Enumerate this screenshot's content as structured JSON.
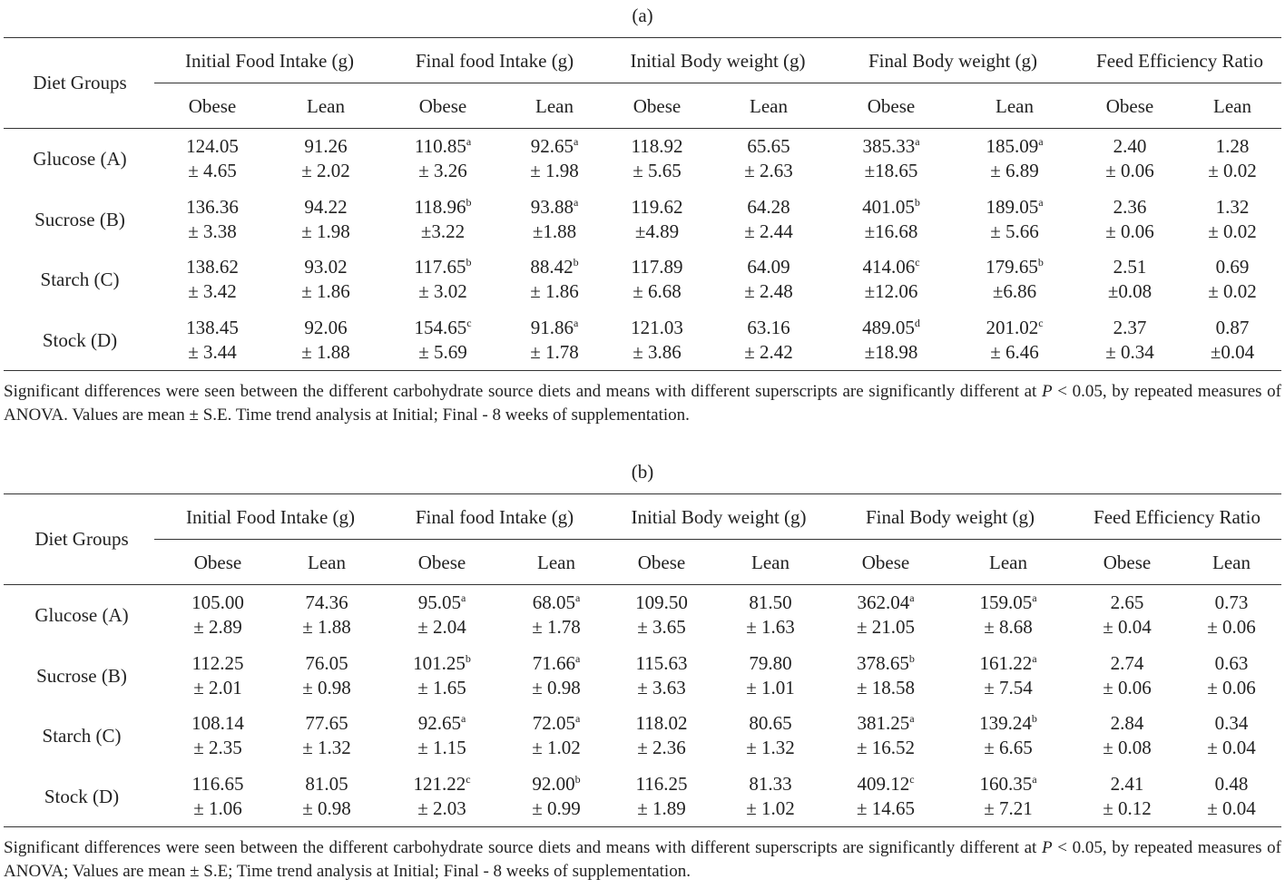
{
  "tables": [
    {
      "caption": "(a)",
      "row_header": "Diet Groups",
      "groups": [
        "Initial Food Intake (g)",
        "Final food Intake (g)",
        "Initial Body weight (g)",
        "Final Body weight (g)",
        "Feed Efficiency Ratio"
      ],
      "subheaders": [
        "Obese",
        "Lean",
        "Obese",
        "Lean",
        "Obese",
        "Lean",
        "Obese",
        "Lean",
        "Obese",
        "Lean"
      ],
      "rows": [
        {
          "label": "Glucose (A)",
          "cells": [
            [
              "124.05",
              "± 4.65"
            ],
            [
              "91.26",
              "± 2.02"
            ],
            [
              "110.85",
              "a",
              "± 3.26"
            ],
            [
              "92.65",
              "a",
              "± 1.98"
            ],
            [
              "118.92",
              "± 5.65"
            ],
            [
              "65.65",
              "± 2.63"
            ],
            [
              "385.33",
              "a",
              "±18.65"
            ],
            [
              "185.09",
              "a",
              "± 6.89"
            ],
            [
              "2.40",
              "± 0.06"
            ],
            [
              "1.28",
              "± 0.02"
            ]
          ]
        },
        {
          "label": "Sucrose (B)",
          "cells": [
            [
              "136.36",
              "± 3.38"
            ],
            [
              "94.22",
              "± 1.98"
            ],
            [
              "118.96",
              "b",
              "±3.22"
            ],
            [
              "93.88",
              "a",
              "±1.88"
            ],
            [
              "119.62",
              "±4.89"
            ],
            [
              "64.28",
              "± 2.44"
            ],
            [
              "401.05",
              "b",
              "±16.68"
            ],
            [
              "189.05",
              "a",
              "± 5.66"
            ],
            [
              "2.36",
              "± 0.06"
            ],
            [
              "1.32",
              "± 0.02"
            ]
          ]
        },
        {
          "label": "Starch (C)",
          "cells": [
            [
              "138.62",
              "± 3.42"
            ],
            [
              "93.02",
              "± 1.86"
            ],
            [
              "117.65",
              "b",
              "± 3.02"
            ],
            [
              "88.42",
              "b",
              "± 1.86"
            ],
            [
              "117.89",
              "± 6.68"
            ],
            [
              "64.09",
              "± 2.48"
            ],
            [
              "414.06",
              "c",
              "±12.06"
            ],
            [
              "179.65",
              "b",
              "±6.86"
            ],
            [
              "2.51",
              "±0.08"
            ],
            [
              "0.69",
              "± 0.02"
            ]
          ]
        },
        {
          "label": "Stock (D)",
          "cells": [
            [
              "138.45",
              "± 3.44"
            ],
            [
              "92.06",
              "± 1.88"
            ],
            [
              "154.65",
              "c",
              "± 5.69"
            ],
            [
              "91.86",
              "a",
              "± 1.78"
            ],
            [
              "121.03",
              "± 3.86"
            ],
            [
              "63.16",
              "± 2.42"
            ],
            [
              "489.05",
              "d",
              "±18.98"
            ],
            [
              "201.02",
              "c",
              "± 6.46"
            ],
            [
              "2.37",
              "± 0.34"
            ],
            [
              "0.87",
              "±0.04"
            ]
          ]
        }
      ],
      "note": [
        "Significant differences were seen between the different carbohydrate source diets and means with different superscripts are significantly different at ",
        "P",
        " < 0.05, by repeated measures of ANOVA. Values are mean ± S.E. Time trend analysis at Initial; Final - 8 weeks of supplementation."
      ]
    },
    {
      "caption": "(b)",
      "row_header": "Diet Groups",
      "groups": [
        "Initial Food Intake (g)",
        "Final food Intake (g)",
        "Initial Body weight (g)",
        "Final Body weight (g)",
        "Feed Efficiency Ratio"
      ],
      "subheaders": [
        "Obese",
        "Lean",
        "Obese",
        "Lean",
        "Obese",
        "Lean",
        "Obese",
        "Lean",
        "Obese",
        "Lean"
      ],
      "rows": [
        {
          "label": "Glucose (A)",
          "cells": [
            [
              "105.00",
              "± 2.89"
            ],
            [
              "74.36",
              "± 1.88"
            ],
            [
              "95.05",
              "a",
              "± 2.04"
            ],
            [
              "68.05",
              "a",
              "± 1.78"
            ],
            [
              "109.50",
              "± 3.65"
            ],
            [
              "81.50",
              "± 1.63"
            ],
            [
              "362.04",
              "a",
              "± 21.05"
            ],
            [
              "159.05",
              "a",
              "± 8.68"
            ],
            [
              "2.65",
              "± 0.04"
            ],
            [
              "0.73",
              "± 0.06"
            ]
          ]
        },
        {
          "label": "Sucrose (B)",
          "cells": [
            [
              "112.25",
              "± 2.01"
            ],
            [
              "76.05",
              "± 0.98"
            ],
            [
              "101.25",
              "b",
              "± 1.65"
            ],
            [
              "71.66",
              "a",
              "± 0.98"
            ],
            [
              "115.63",
              "± 3.63"
            ],
            [
              "79.80",
              "± 1.01"
            ],
            [
              "378.65",
              "b",
              "± 18.58"
            ],
            [
              "161.22",
              "a",
              "± 7.54"
            ],
            [
              "2.74",
              "± 0.06"
            ],
            [
              "0.63",
              "± 0.06"
            ]
          ]
        },
        {
          "label": "Starch (C)",
          "cells": [
            [
              "108.14",
              "± 2.35"
            ],
            [
              "77.65",
              "± 1.32"
            ],
            [
              "92.65",
              "a",
              "± 1.15"
            ],
            [
              "72.05",
              "a",
              "± 1.02"
            ],
            [
              "118.02",
              "± 2.36"
            ],
            [
              "80.65",
              "± 1.32"
            ],
            [
              "381.25",
              "a",
              "± 16.52"
            ],
            [
              "139.24",
              "b",
              "± 6.65"
            ],
            [
              "2.84",
              "± 0.08"
            ],
            [
              "0.34",
              "± 0.04"
            ]
          ]
        },
        {
          "label": "Stock (D)",
          "cells": [
            [
              "116.65",
              "± 1.06"
            ],
            [
              "81.05",
              "± 0.98"
            ],
            [
              "121.22",
              "c",
              "± 2.03"
            ],
            [
              "92.00",
              "b",
              "± 0.99"
            ],
            [
              "116.25",
              "± 1.89"
            ],
            [
              "81.33",
              "± 1.02"
            ],
            [
              "409.12",
              "c",
              "± 14.65"
            ],
            [
              "160.35",
              "a",
              "± 7.21"
            ],
            [
              "2.41",
              "± 0.12"
            ],
            [
              "0.48",
              "± 0.04"
            ]
          ]
        }
      ],
      "note": [
        "Significant differences were seen between the different carbohydrate source diets and means with different superscripts are significantly different at ",
        "P",
        " < 0.05, by repeated measures of ANOVA; Values are mean ± S.E; Time trend analysis at Initial; Final - 8 weeks of supplementation."
      ]
    }
  ]
}
